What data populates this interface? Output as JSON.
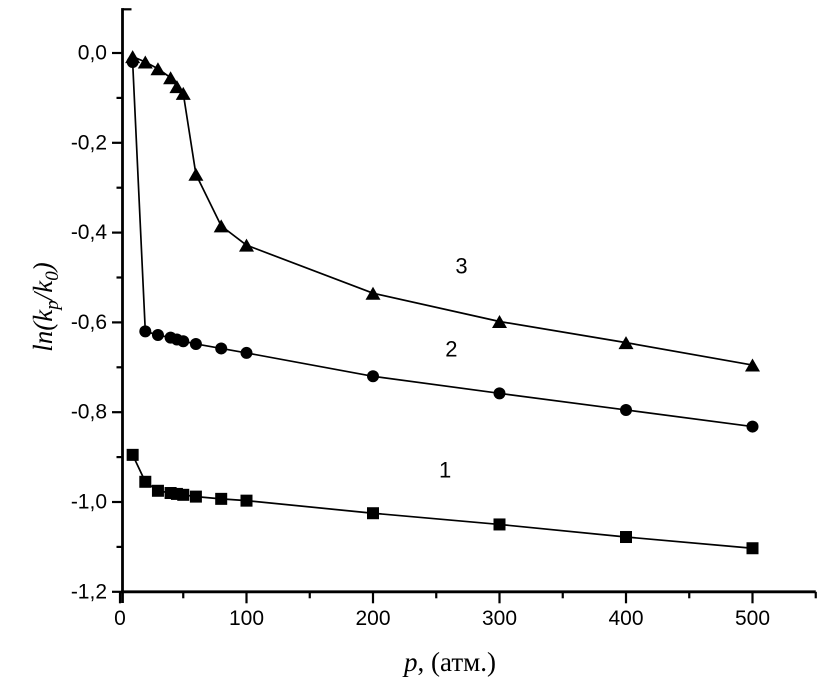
{
  "figure": {
    "background": "#ffffff",
    "ink_color": "#000000"
  },
  "chart_data": {
    "type": "line",
    "title": "",
    "xlabel": "p, (атм.)",
    "xlabel_parts": {
      "variable": "p",
      "rest": ", (атм.)"
    },
    "ylabel": "ln(kp/k0)",
    "ylabel_parts": [
      {
        "t": "ln(k",
        "sub": false
      },
      {
        "t": "p",
        "sub": true
      },
      {
        "t": "/k",
        "sub": false
      },
      {
        "t": "0",
        "sub": true
      },
      {
        "t": ")",
        "sub": false
      }
    ],
    "xlim": [
      0,
      550
    ],
    "ylim": [
      -1.2,
      0.1
    ],
    "grid": false,
    "legend": "inline-numeric-labels",
    "x_ticks_major": [
      {
        "v": 0,
        "label": "0"
      },
      {
        "v": 100,
        "label": "100"
      },
      {
        "v": 200,
        "label": "200"
      },
      {
        "v": 300,
        "label": "300"
      },
      {
        "v": 400,
        "label": "400"
      },
      {
        "v": 500,
        "label": "500"
      }
    ],
    "x_ticks_minor": [
      50,
      150,
      250,
      350,
      450,
      550
    ],
    "y_ticks_major": [
      {
        "v": 0.0,
        "label": "0,0"
      },
      {
        "v": -0.2,
        "label": "-0,2"
      },
      {
        "v": -0.4,
        "label": "-0,4"
      },
      {
        "v": -0.6,
        "label": "-0,6"
      },
      {
        "v": -0.8,
        "label": "-0,8"
      },
      {
        "v": -1.0,
        "label": "-1,0"
      },
      {
        "v": -1.2,
        "label": "-1,2"
      }
    ],
    "y_ticks_minor": [
      0.1,
      -0.1,
      -0.3,
      -0.5,
      -0.7,
      -0.9,
      -1.1
    ],
    "series": [
      {
        "name": "1",
        "marker": "square",
        "x": [
          10,
          20,
          30,
          40,
          45,
          50,
          60,
          80,
          100,
          200,
          300,
          400,
          500
        ],
        "y": [
          -0.895,
          -0.955,
          -0.975,
          -0.98,
          -0.982,
          -0.984,
          -0.988,
          -0.993,
          -0.997,
          -1.025,
          -1.05,
          -1.078,
          -1.103
        ],
        "label": "1",
        "label_at": {
          "x": 257,
          "y": -0.929
        }
      },
      {
        "name": "2",
        "marker": "circle",
        "x": [
          10,
          20,
          30,
          40,
          45,
          50,
          60,
          80,
          100,
          200,
          300,
          400,
          500
        ],
        "y": [
          -0.02,
          -0.62,
          -0.628,
          -0.634,
          -0.638,
          -0.642,
          -0.648,
          -0.658,
          -0.668,
          -0.72,
          -0.758,
          -0.795,
          -0.832
        ],
        "label": "2",
        "label_at": {
          "x": 262,
          "y": -0.659
        }
      },
      {
        "name": "3",
        "marker": "triangle",
        "x": [
          10,
          20,
          30,
          40,
          45,
          50,
          60,
          80,
          100,
          200,
          300,
          400,
          500
        ],
        "y": [
          -0.008,
          -0.02,
          -0.035,
          -0.055,
          -0.075,
          -0.09,
          -0.27,
          -0.385,
          -0.428,
          -0.535,
          -0.598,
          -0.645,
          -0.695
        ],
        "label": "3",
        "label_at": {
          "x": 270,
          "y": -0.474
        }
      }
    ]
  }
}
